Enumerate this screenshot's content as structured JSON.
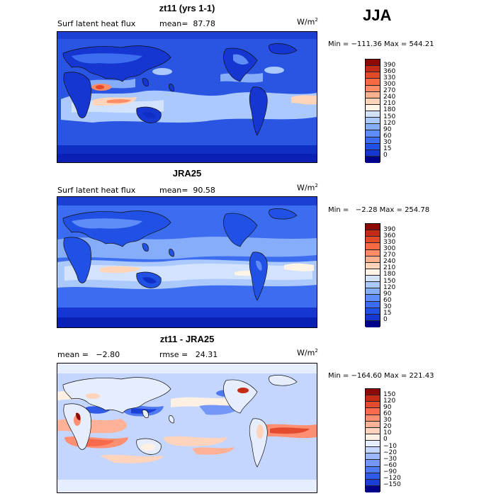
{
  "season": "JJA",
  "colors": {
    "full_scale": [
      "#00008b",
      "#0a1fb4",
      "#1536d0",
      "#2150e4",
      "#3c6df0",
      "#5f8cf6",
      "#86adfa",
      "#abc9fd",
      "#d3e3fe",
      "#fff4e6",
      "#ffd4b8",
      "#ffb08f",
      "#ff8c66",
      "#f56a45",
      "#e24a2a",
      "#c42a14",
      "#8c0a04"
    ],
    "diff_scale": [
      "#00008b",
      "#0b22b8",
      "#1a3ed6",
      "#2f5ae8",
      "#4f79f3",
      "#7598f8",
      "#9db7fb",
      "#c4d6fd",
      "#e6eefe",
      "#fff0e4",
      "#ffd3bc",
      "#ffb298",
      "#ff8f72",
      "#f86a4c",
      "#e44b2e",
      "#c42c16",
      "#8c0b04"
    ]
  },
  "panels": [
    {
      "title": "zt11 (yrs 1-1)",
      "variable": "Surf latent heat flux",
      "stat_text": "mean=  87.78",
      "units": "W/m",
      "units_exp": "2",
      "minmax_text": "Min = −111.36 Max = 544.21",
      "levels": [
        "390",
        "360",
        "330",
        "300",
        "270",
        "240",
        "210",
        "180",
        "150",
        "120",
        "90",
        "60",
        "30",
        "15",
        "0"
      ]
    },
    {
      "title": "JRA25",
      "variable": "Surf latent heat flux",
      "stat_text": "mean=  90.58",
      "units": "W/m",
      "units_exp": "2",
      "minmax_text": "Min =   −2.28 Max = 254.78",
      "levels": [
        "390",
        "360",
        "330",
        "300",
        "270",
        "240",
        "210",
        "180",
        "150",
        "120",
        "90",
        "60",
        "30",
        "15",
        "0"
      ]
    },
    {
      "title": "zt11 - JRA25",
      "stat_left": "mean =   −2.80",
      "stat_right": "rmse =   24.31",
      "units": "W/m",
      "units_exp": "2",
      "minmax_text": "Min = −164.60 Max = 221.43",
      "levels": [
        "150",
        "120",
        "90",
        "60",
        "30",
        "20",
        "10",
        "0",
        "−10",
        "−20",
        "−30",
        "−60",
        "−90",
        "−120",
        "−150"
      ]
    }
  ]
}
